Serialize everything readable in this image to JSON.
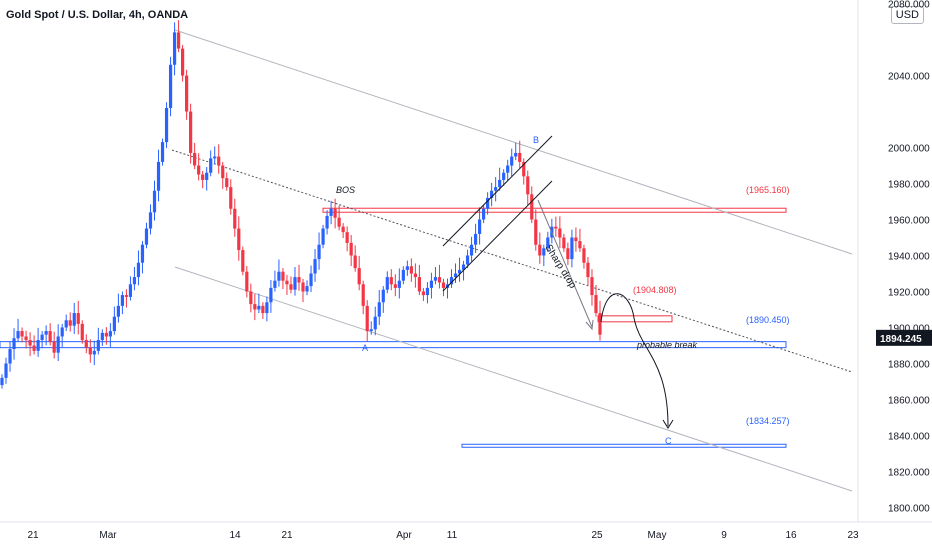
{
  "title": "Gold Spot / U.S. Dollar, 4h, OANDA",
  "currency_button": "USD",
  "colors": {
    "bull": "#2962ff",
    "bear": "#f23645",
    "price_tag": "#131722",
    "trend": "#b2b5be"
  },
  "chart_data": {
    "type": "candlestick",
    "title": "Gold Spot / U.S. Dollar, 4h, OANDA",
    "x_ticks": [
      "21",
      "Mar",
      "14",
      "21",
      "Apr",
      "11",
      "25",
      "May",
      "9",
      "16",
      "23"
    ],
    "y_ticks": [
      1800,
      1820,
      1840,
      1860,
      1880,
      1900,
      1920,
      1940,
      1960,
      1980,
      2000,
      2040,
      2080
    ],
    "ylim": [
      1793,
      2082
    ],
    "last_price": "1894.245",
    "series": [
      {
        "close": [
          1872,
          1880,
          1888,
          1894,
          1898,
          1895,
          1893,
          1890,
          1887,
          1893,
          1896,
          1898,
          1892,
          1886,
          1895,
          1900,
          1904,
          1901,
          1908,
          1902,
          1893,
          1889,
          1885,
          1887,
          1893,
          1897,
          1895,
          1898,
          1906,
          1912,
          1918,
          1917,
          1924,
          1928,
          1936,
          1946,
          1955,
          1964,
          1976,
          1992,
          2003,
          2022,
          2046,
          2064,
          2055,
          2040,
          2020,
          1997,
          1990,
          1985,
          1982,
          1986,
          1994,
          1995,
          1990,
          1983,
          1978,
          1966,
          1955,
          1943,
          1931,
          1920,
          1913,
          1910,
          1912,
          1908,
          1914,
          1922,
          1926,
          1931,
          1926,
          1924,
          1921,
          1928,
          1925,
          1920,
          1923,
          1930,
          1938,
          1946,
          1955,
          1962,
          1966,
          1961,
          1956,
          1953,
          1947,
          1940,
          1933,
          1924,
          1912,
          1898,
          1899,
          1906,
          1914,
          1921,
          1928,
          1924,
          1922,
          1926,
          1932,
          1934,
          1930,
          1928,
          1920,
          1918,
          1922,
          1926,
          1928,
          1925,
          1922,
          1924,
          1928,
          1930,
          1932,
          1935,
          1940,
          1946,
          1952,
          1960,
          1966,
          1972,
          1976,
          1978,
          1982,
          1986,
          1990,
          1995,
          1997,
          1992,
          1984,
          1974,
          1960,
          1946,
          1940,
          1944,
          1950,
          1956,
          1955,
          1950,
          1944,
          1938,
          1950,
          1948,
          1944,
          1936,
          1928,
          1918,
          1908,
          1896
        ],
        "range": [
          1940,
          1936
        ]
      }
    ],
    "annotations": [
      {
        "text": "BOS"
      },
      {
        "text": "(1965.160)"
      },
      {
        "text": "(1904.808)"
      },
      {
        "text": "(1890.450)"
      },
      {
        "text": "(1834.257)"
      },
      {
        "text": "A"
      },
      {
        "text": "B"
      },
      {
        "text": "C"
      },
      {
        "text": "Sharp drop"
      },
      {
        "text": "probable break"
      }
    ]
  }
}
